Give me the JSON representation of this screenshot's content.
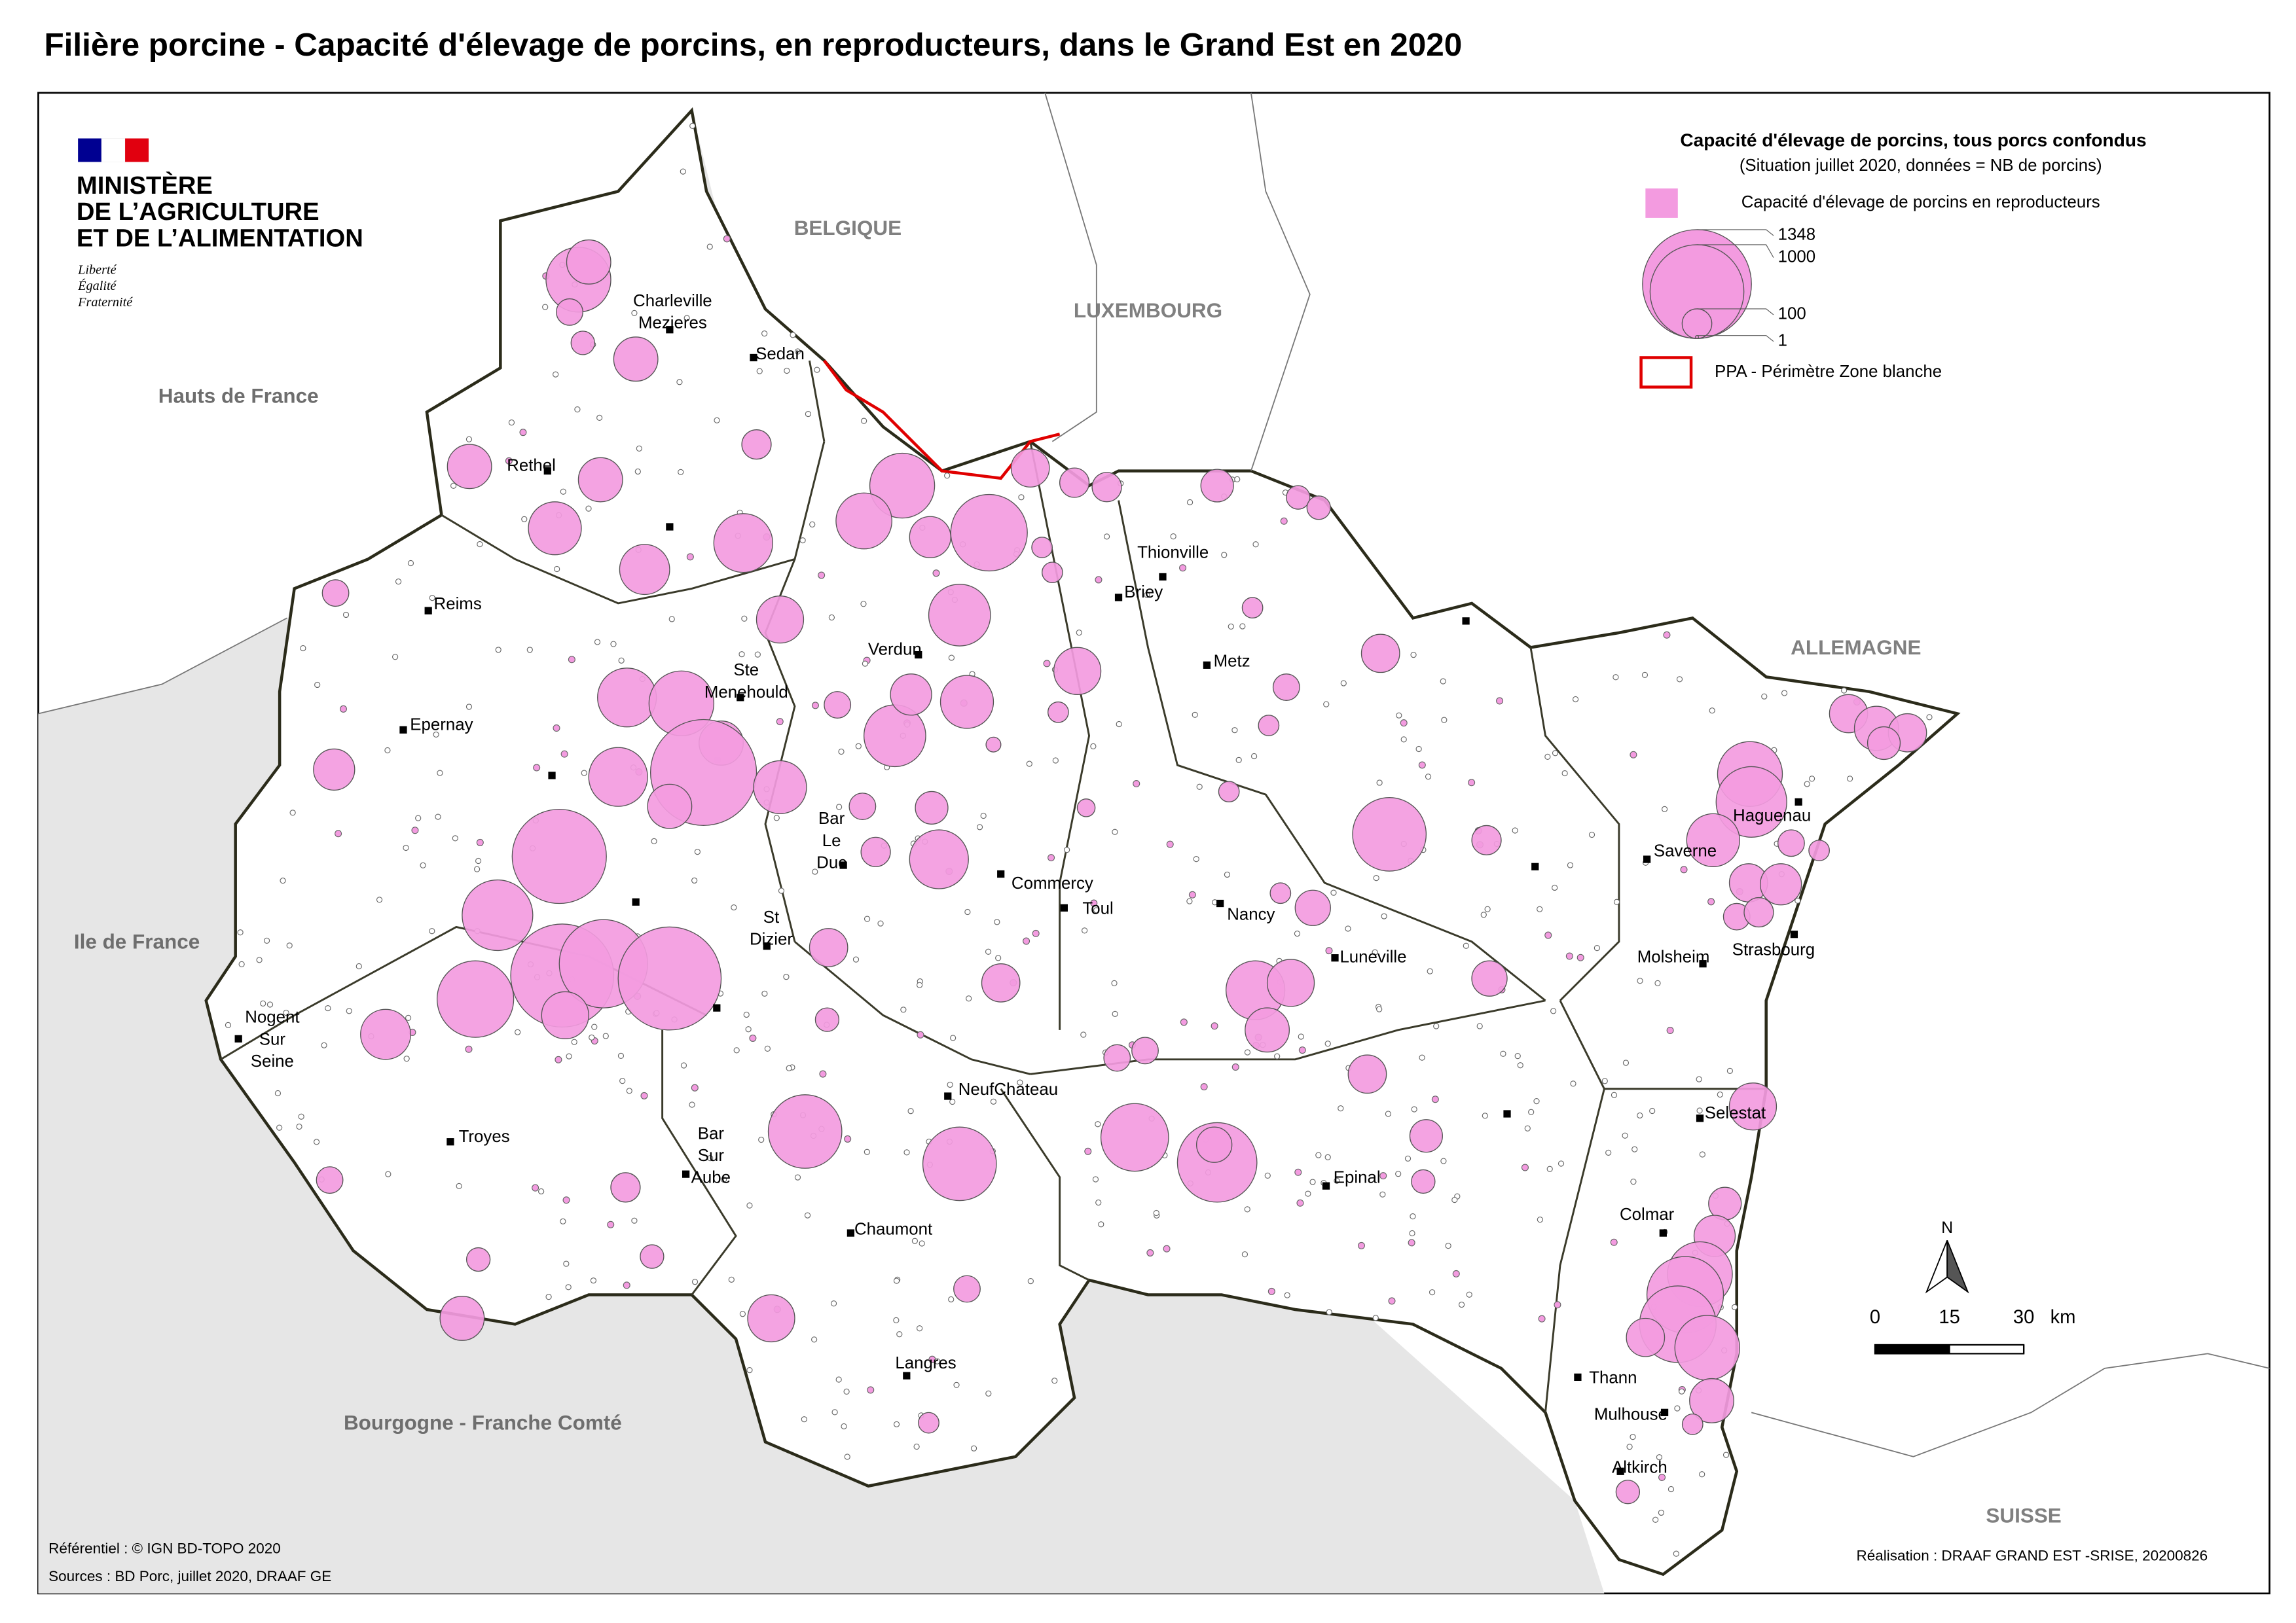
{
  "title": "Filière porcine - Capacité d'élevage de porcins, en reproducteurs, dans le Grand Est en 2020",
  "logo": {
    "lines": [
      "MINISTÈRE",
      "DE L’AGRICULTURE",
      "ET DE L’ALIMENTATION"
    ],
    "motto": [
      "Liberté",
      "Égalité",
      "Fraternité"
    ]
  },
  "countries": [
    "BELGIQUE",
    "LUXEMBOURG",
    "ALLEMAGNE",
    "SUISSE"
  ],
  "regions": [
    "Hauts de France",
    "Ile de France",
    "Bourgogne - Franche Comté"
  ],
  "cities": [
    [
      "Charleville",
      "Mezieres"
    ],
    [
      "Sedan"
    ],
    [
      "Rethel"
    ],
    [
      "Reims"
    ],
    [
      "Thionville"
    ],
    [
      "Briey"
    ],
    [
      "Metz"
    ],
    [
      "Verdun"
    ],
    [
      "Ste",
      "Menehould"
    ],
    [
      "Epernay"
    ],
    [
      "Bar",
      "Le",
      "Duc"
    ],
    [
      "Commercy"
    ],
    [
      "Toul"
    ],
    [
      "Nancy"
    ],
    [
      "St",
      "Dizier"
    ],
    [
      "Luneville"
    ],
    [
      "Saverne"
    ],
    [
      "Haguenau"
    ],
    [
      "Molsheim"
    ],
    [
      "Strasbourg"
    ],
    [
      "Nogent",
      "Sur",
      "Seine"
    ],
    [
      "Troyes"
    ],
    [
      "Bar",
      "Sur",
      "Aube"
    ],
    [
      "NeufChateau"
    ],
    [
      "Epinal"
    ],
    [
      "Selestat"
    ],
    [
      "Colmar"
    ],
    [
      "Chaumont"
    ],
    [
      "Thann"
    ],
    [
      "Mulhouse"
    ],
    [
      "Langres"
    ],
    [
      "Altkirch"
    ]
  ],
  "legend": {
    "title": "Capacité d'élevage de porcins, tous porcs confondus",
    "subtitle": "(Situation juillet 2020, données = NB de porcins)",
    "item": "Capacité d'élevage de porcins en reproducteurs",
    "color": "#f39be0",
    "sizes": [
      1348,
      1000,
      100,
      1
    ],
    "ppa": "PPA - Périmètre Zone blanche"
  },
  "north": "N",
  "scale": {
    "ticks": [
      0,
      15,
      30
    ],
    "unit": "km"
  },
  "credits": [
    "Référentiel : © IGN BD-TOPO 2020",
    "Sources : BD Porc, juillet 2020, DRAAF GE"
  ],
  "realisation": "Réalisation : DRAAF GRAND EST -SRISE, 20200826",
  "farms": [
    478,
    222,
    80,
    63,
    222,
    222,
    222,
    319,
    285,
    394,
    98,
    478,
    355,
    193,
    666,
    166,
    98,
    98,
    434,
    252,
    80,
    252,
    394,
    478,
    222,
    1276,
    394,
    222,
    319,
    434,
    193,
    319,
    80,
    193,
    1008,
    80,
    121,
    394,
    98,
    567,
    666,
    1206,
    886,
    1206,
    252,
    166,
    166,
    285,
    63,
    615,
    615,
    521,
    718,
    142,
    80,
    80,
    394,
    252,
    222,
    142,
    48,
    166,
    80,
    48,
    48,
    615,
    98,
    142,
    166,
    121,
    63,
    121,
    48,
    478,
    567,
    319,
    80,
    48,
    166,
    193,
    80,
    98,
    166,
    222,
    166,
    121,
    252,
    121,
    193,
    478,
    666,
    666,
    478,
    166,
    222,
    63,
    48,
    80,
    63,
    222,
    63,
    98,
    252,
    48,
    80,
    63,
    63,
    48,
    48,
    48,
    25,
    36
  ]
}
